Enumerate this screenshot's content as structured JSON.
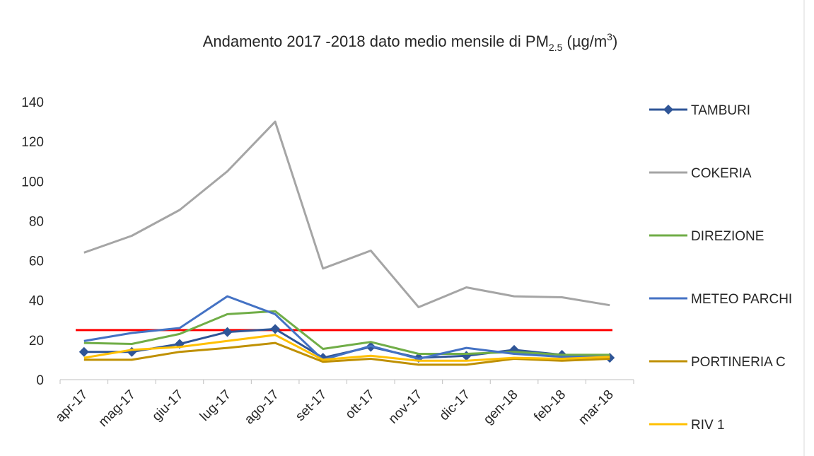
{
  "chart_data": {
    "type": "line",
    "title": [
      "Andamento 2017 -2018 dato medio mensile di PM",
      "2.5",
      " (µg/m",
      "3",
      ")"
    ],
    "categories": [
      "apr-17",
      "mag-17",
      "giu-17",
      "lug-17",
      "ago-17",
      "set-17",
      "ott-17",
      "nov-17",
      "dic-17",
      "gen-18",
      "feb-18",
      "mar-18"
    ],
    "series": [
      {
        "name": "TAMBURI",
        "color": "#2f5597",
        "marker": "diamond",
        "values": [
          14,
          14,
          18,
          24,
          25.5,
          11,
          16.5,
          11,
          12,
          15,
          12.5,
          11
        ]
      },
      {
        "name": "COKERIA",
        "color": "#a5a5a5",
        "values": [
          64,
          72.5,
          85.5,
          105,
          130,
          56,
          65,
          36.5,
          46.5,
          42,
          41.5,
          37.5
        ]
      },
      {
        "name": "DIREZIONE",
        "color": "#70ad47",
        "values": [
          18.5,
          18,
          23,
          33,
          34.5,
          15.5,
          19,
          13,
          13,
          14,
          12.5,
          12.5
        ]
      },
      {
        "name": "METEO PARCHI",
        "color": "#4472c4",
        "values": [
          19.5,
          23.5,
          26,
          42,
          33,
          10,
          17,
          10.5,
          16,
          13,
          11.5,
          11.5
        ]
      },
      {
        "name": "PORTINERIA C",
        "color": "#bf9000",
        "values": [
          10,
          10,
          14,
          16,
          18.5,
          9,
          10.5,
          7.5,
          7.5,
          10.5,
          9.5,
          10.5
        ]
      },
      {
        "name": "RIV 1",
        "color": "#ffc000",
        "values": [
          11,
          15,
          16.5,
          19.5,
          22.5,
          10,
          12,
          9.5,
          9.5,
          11,
          10.5,
          11.5
        ]
      }
    ],
    "reference_line": {
      "value": 25,
      "color": "#ff0000"
    },
    "ylim": [
      0,
      140
    ],
    "yticks": [
      0,
      20,
      40,
      60,
      80,
      100,
      120,
      140
    ],
    "legend": "right"
  }
}
